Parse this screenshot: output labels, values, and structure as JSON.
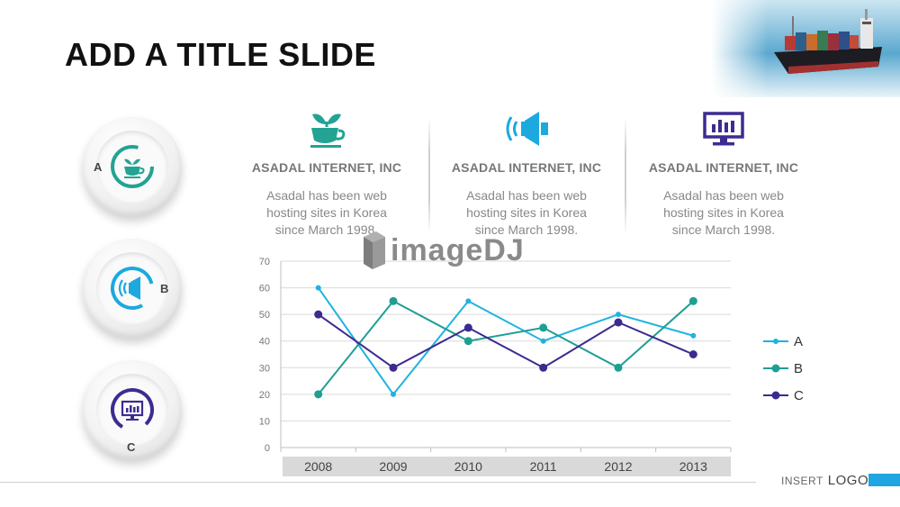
{
  "slide": {
    "title": "ADD A TITLE SLIDE"
  },
  "badges": [
    {
      "letter": "A",
      "icon": "cup-icon",
      "color": "#22a394"
    },
    {
      "letter": "B",
      "icon": "speaker-icon",
      "color": "#1ba9df"
    },
    {
      "letter": "C",
      "icon": "monitor-icon",
      "color": "#3e2b92"
    }
  ],
  "info_columns": [
    {
      "icon": "cup-icon",
      "color": "#22a394",
      "heading": "ASADAL INTERNET, INC",
      "lines": [
        "Asadal has been  web",
        "hosting sites in Korea",
        "since March 1998."
      ]
    },
    {
      "icon": "speaker-icon",
      "color": "#1ba9df",
      "heading": "ASADAL INTERNET, INC",
      "lines": [
        "Asadal has been  web",
        "hosting sites in Korea",
        "since March 1998."
      ]
    },
    {
      "icon": "monitor-icon",
      "color": "#3e2b92",
      "heading": "ASADAL INTERNET, INC",
      "lines": [
        "Asadal has been  web",
        "hosting sites in Korea",
        "since March 1998."
      ]
    }
  ],
  "watermark": {
    "text": "imageDJ"
  },
  "chart_data": {
    "type": "line",
    "categories": [
      "2008",
      "2009",
      "2010",
      "2011",
      "2012",
      "2013"
    ],
    "ylim": [
      0,
      70
    ],
    "yticks": [
      0,
      10,
      20,
      30,
      40,
      50,
      60,
      70
    ],
    "grid": true,
    "legend_position": "right",
    "series": [
      {
        "name": "A",
        "color": "#1fb3e0",
        "values": [
          60,
          20,
          55,
          40,
          50,
          42
        ]
      },
      {
        "name": "B",
        "color": "#1f9e93",
        "values": [
          20,
          55,
          40,
          45,
          30,
          55
        ]
      },
      {
        "name": "C",
        "color": "#3d2a8f",
        "values": [
          50,
          30,
          45,
          30,
          47,
          35
        ]
      }
    ]
  },
  "footer": {
    "insert_text": "INSERT",
    "logo_text": "LOGO",
    "accent": "#1fa6e0"
  }
}
